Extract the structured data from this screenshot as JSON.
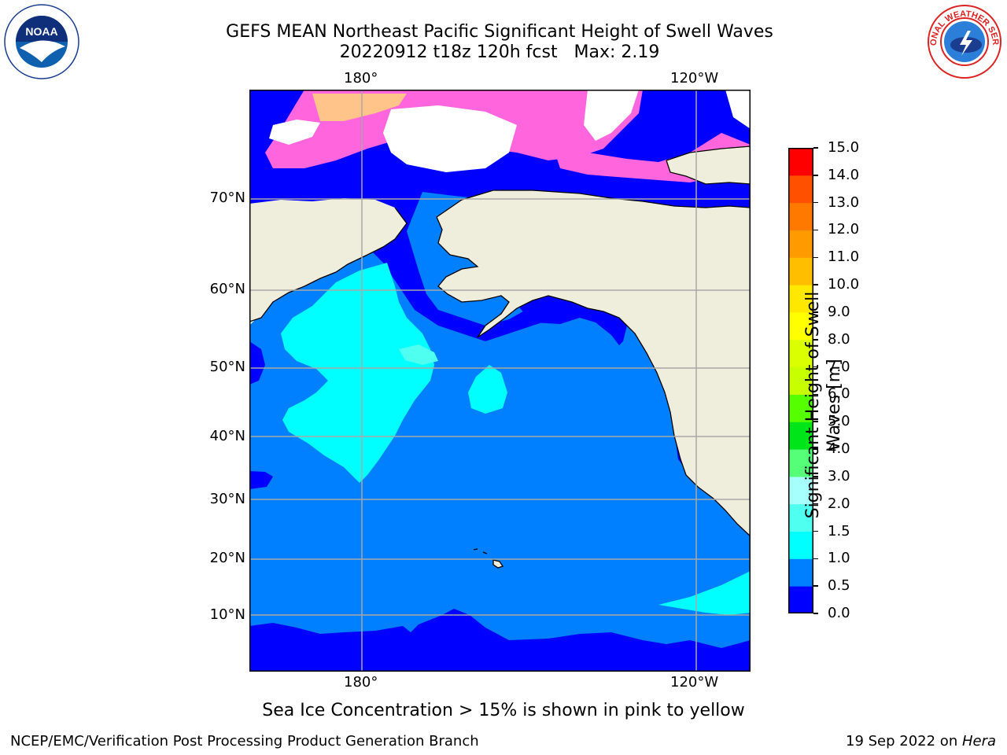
{
  "title": {
    "line1": "GEFS MEAN Northeast Pacific Significant Height of Swell Waves",
    "line2": "20220912 t18z 120h fcst   Max: 2.19"
  },
  "map": {
    "top_lon_labels": [
      "180°",
      "120°W"
    ],
    "bottom_lon_labels": [
      "180°",
      "120°W"
    ],
    "lat_labels": [
      "70°N",
      "60°N",
      "50°N",
      "40°N",
      "30°N",
      "20°N",
      "10°N"
    ],
    "colors": {
      "land": "#efeddc",
      "ocean_0_05": "#0000ff",
      "ocean_05_10": "#007ffe",
      "ocean_10_15": "#00ffff",
      "ocean_15_20": "#4ffff0",
      "ice_white": "#ffffff",
      "ice_pink": "#ff66dd",
      "ice_orange": "#ffc48a",
      "grid": "#a8a8a8"
    }
  },
  "colorbar": {
    "label": "Significant Height of Swell\nWaves [m]",
    "ticks": [
      "15.0",
      "14.0",
      "13.0",
      "12.0",
      "11.0",
      "10.0",
      "9.0",
      "8.0",
      "7.0",
      "6.0",
      "5.0",
      "4.0",
      "3.0",
      "2.0",
      "1.5",
      "1.0",
      "0.5",
      "0.0"
    ],
    "colors_bottom_to_top": [
      "#0000ff",
      "#007fff",
      "#00ffff",
      "#4ffff0",
      "#a6fffc",
      "#55ff77",
      "#00e51a",
      "#55ff00",
      "#c8ff00",
      "#d9ff00",
      "#ffff00",
      "#ffe800",
      "#ffbe00",
      "#ff9a00",
      "#ff7800",
      "#ff5000",
      "#ff0000"
    ]
  },
  "caption": "Sea Ice Concentration > 15% is shown in pink to yellow",
  "footer": {
    "left": "NCEP/EMC/Verification Post Processing Product Generation Branch",
    "right_date": "19 Sep 2022 on ",
    "right_host": "Hera"
  },
  "logos": {
    "noaa": "NOAA",
    "nws": "NATIONAL WEATHER SERVICE"
  }
}
